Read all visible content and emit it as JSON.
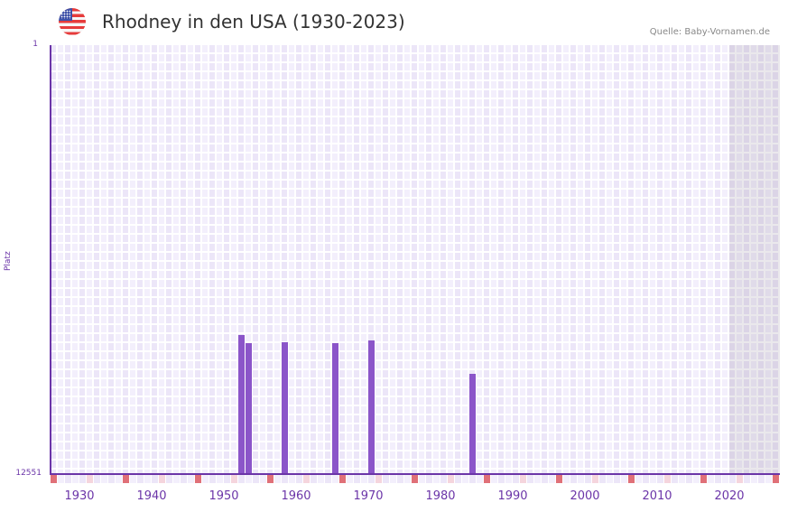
{
  "header": {
    "flag_icon": "us-flag-icon",
    "title": "Rhodney in den USA (1930-2023)",
    "source": "Quelle: Baby-Vornamen.de"
  },
  "chart_data": {
    "type": "bar",
    "title": "Rhodney in den USA (1930-2023)",
    "xlabel": "",
    "ylabel": "Platz",
    "y_axis_inverted": true,
    "ylim": [
      12551,
      1
    ],
    "y_ticks": [
      "1",
      "12551"
    ],
    "x_ticks": [
      "1930",
      "1940",
      "1950",
      "1960",
      "1970",
      "1980",
      "1990",
      "2000",
      "2010",
      "2020"
    ],
    "xlim": [
      1928,
      2028
    ],
    "grid": true,
    "legend": null,
    "shaded_region": {
      "from": 2022,
      "to": 2028
    },
    "x": [
      1954,
      1955,
      1960,
      1967,
      1972,
      1986
    ],
    "values": [
      8490,
      8720,
      8690,
      8720,
      8640,
      9620
    ],
    "colors": {
      "bar": "#8b55c9",
      "axis": "#6b35a8",
      "decade_marker": "#e07078",
      "half_decade_marker": "#f5d5dd"
    }
  },
  "axes": {
    "y_top": "1",
    "y_bottom": "12551",
    "y_label": "Platz",
    "x_labels": [
      "1930",
      "1940",
      "1950",
      "1960",
      "1970",
      "1980",
      "1990",
      "2000",
      "2010",
      "2020"
    ]
  }
}
